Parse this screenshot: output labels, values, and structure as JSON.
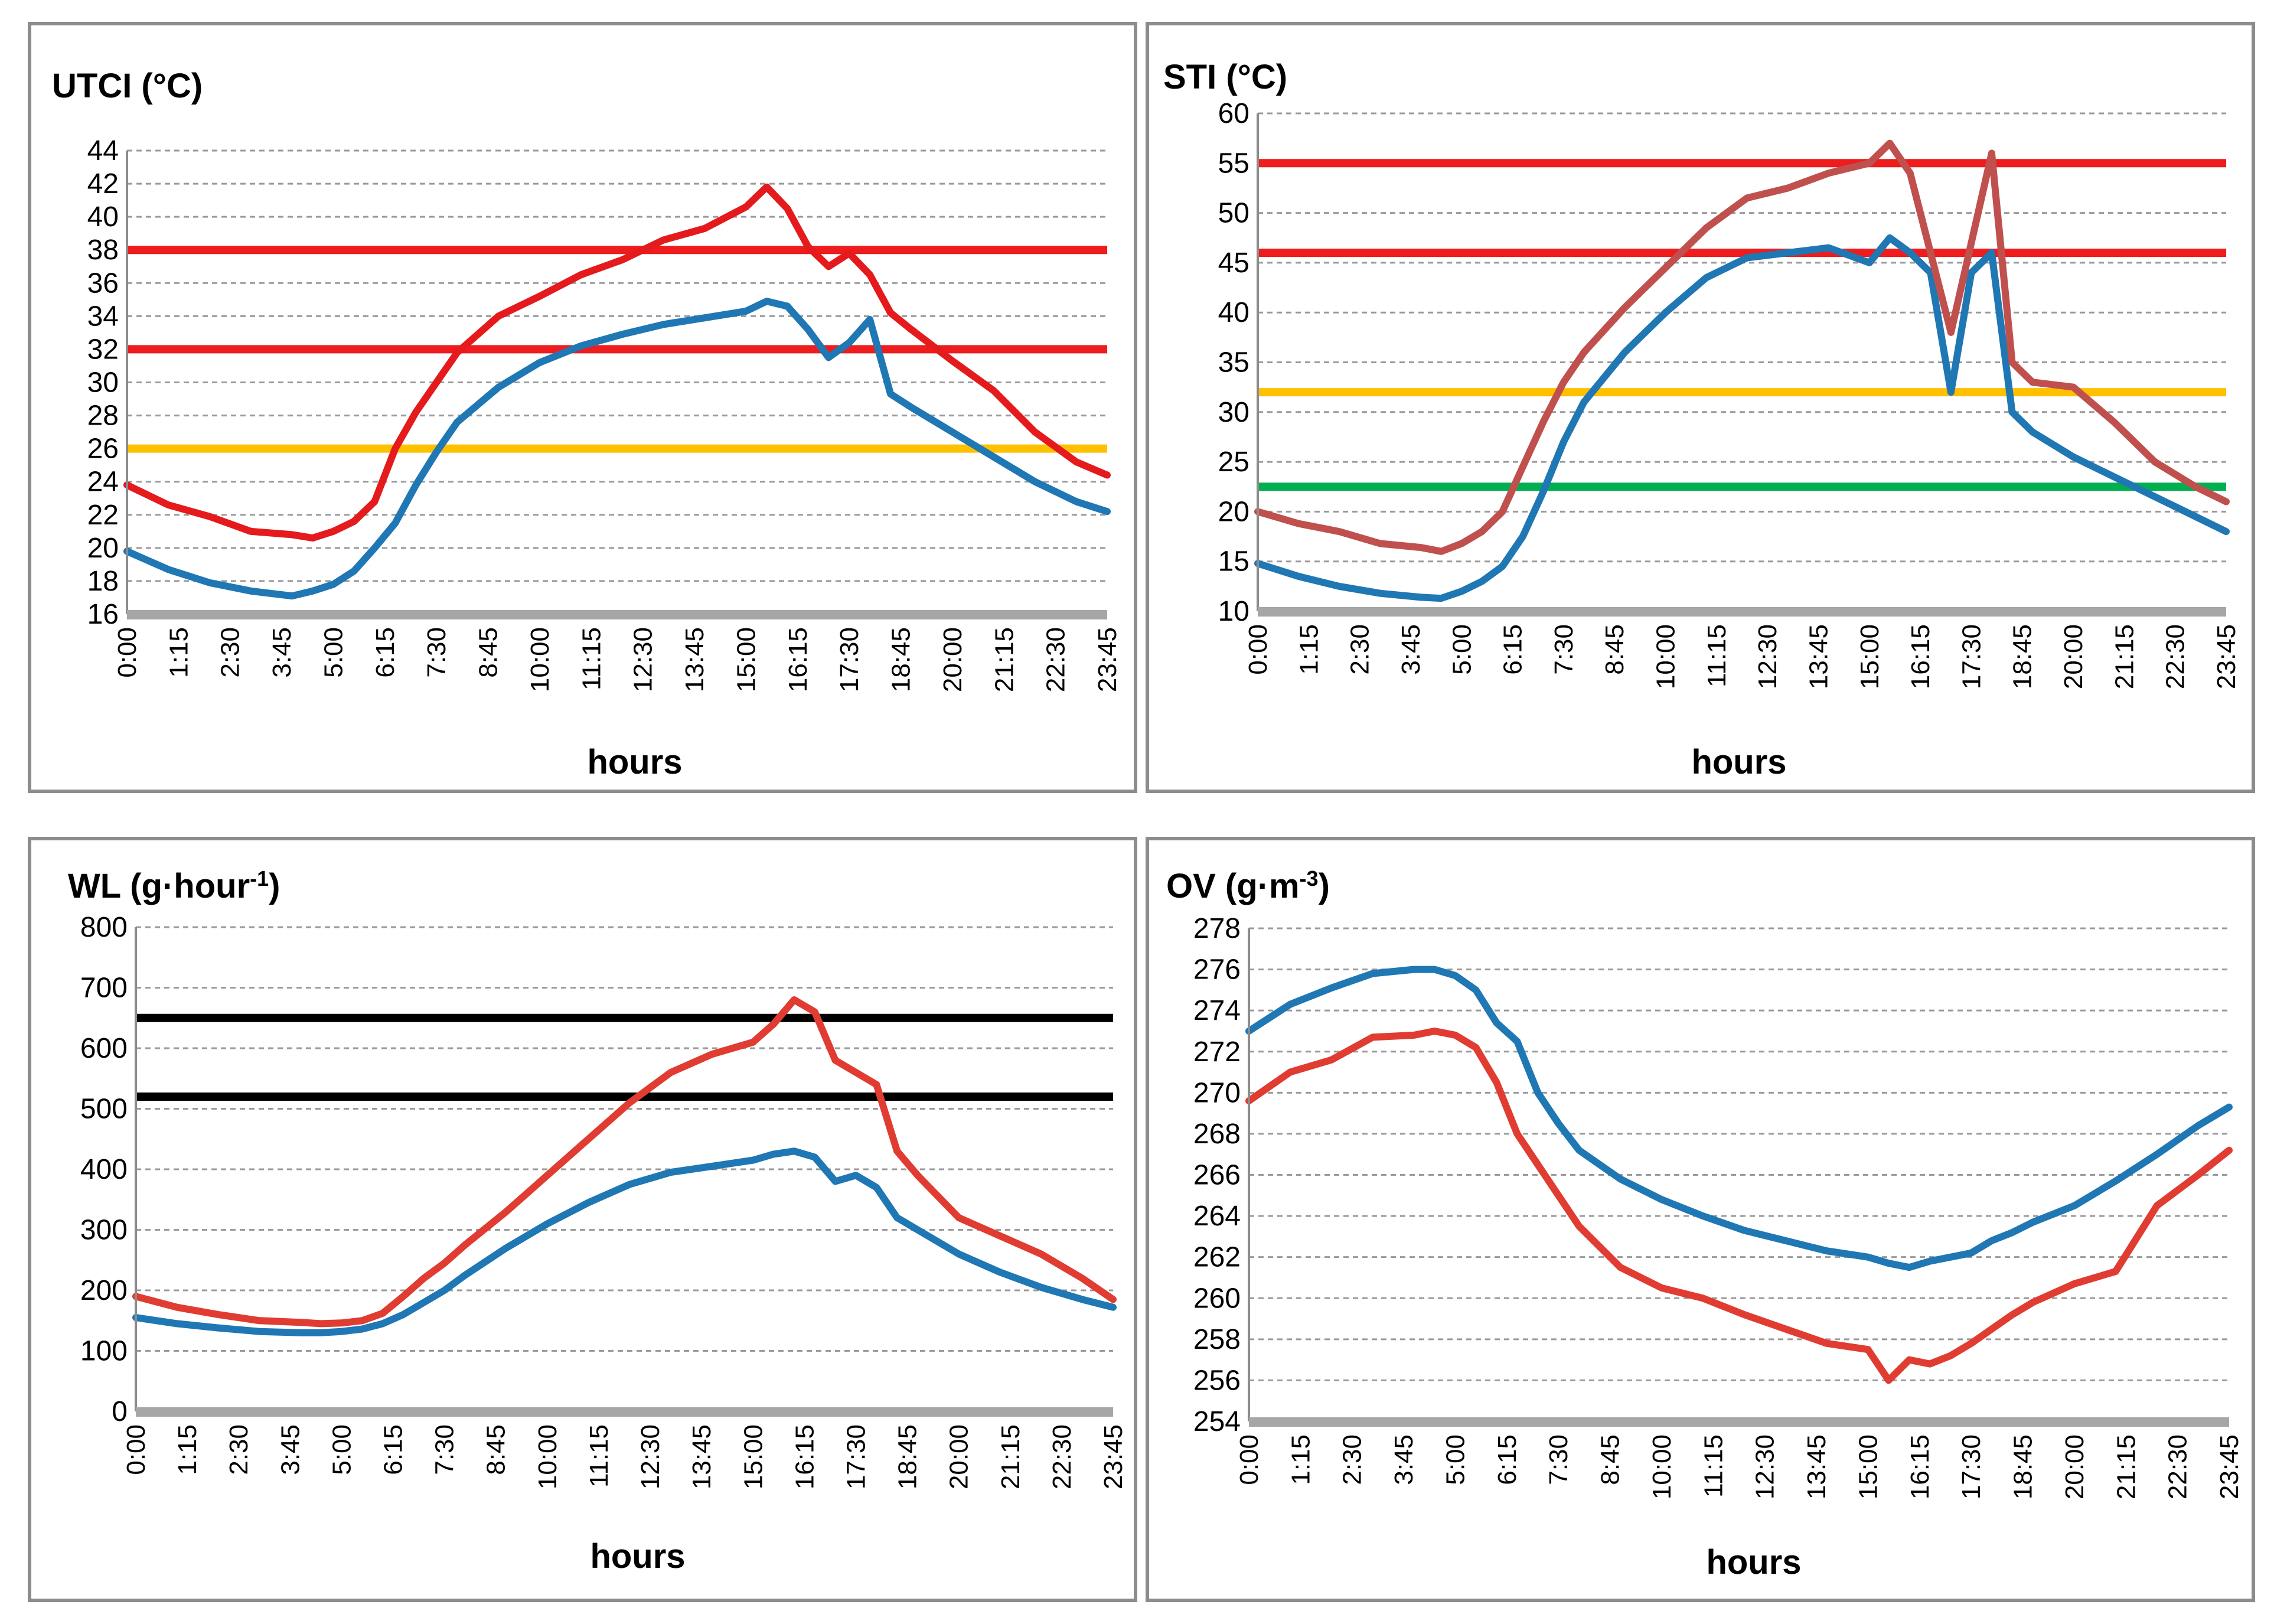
{
  "chart_data": [
    {
      "id": "utci",
      "type": "line",
      "title": "UTCI (°C)",
      "xlabel": "hours",
      "ylim": [
        16,
        44
      ],
      "yticks": [
        16,
        18,
        20,
        22,
        24,
        26,
        28,
        30,
        32,
        34,
        36,
        38,
        40,
        42,
        44
      ],
      "x_ticks": [
        "0:00",
        "1:15",
        "2:30",
        "3:45",
        "5:00",
        "6:15",
        "7:30",
        "8:45",
        "10:00",
        "11:15",
        "12:30",
        "13:45",
        "15:00",
        "16:15",
        "17:30",
        "18:45",
        "20:00",
        "21:15",
        "22:30",
        "23:45"
      ],
      "x_hours": [
        0,
        1,
        2,
        3,
        4,
        4.5,
        5,
        5.5,
        6,
        6.5,
        7,
        7.5,
        8,
        9,
        10,
        11,
        12,
        13,
        14,
        15,
        15.5,
        16,
        16.5,
        17,
        17.5,
        18,
        18.5,
        19,
        20,
        21,
        22,
        23,
        23.75
      ],
      "series": [
        {
          "name": "series-blue",
          "color": "#1f77b4",
          "values": [
            19.8,
            18.7,
            17.9,
            17.4,
            17.1,
            17.4,
            17.8,
            18.6,
            20.0,
            21.5,
            23.8,
            25.8,
            27.6,
            29.7,
            31.2,
            32.2,
            32.9,
            33.5,
            33.9,
            34.3,
            34.9,
            34.6,
            33.2,
            31.5,
            32.4,
            33.8,
            29.3,
            28.5,
            27.0,
            25.5,
            24.0,
            22.8,
            22.2
          ]
        },
        {
          "name": "series-red",
          "color": "#e41a1c",
          "values": [
            23.8,
            22.6,
            21.9,
            21.0,
            20.8,
            20.6,
            21.0,
            21.6,
            22.8,
            26.0,
            28.2,
            30.0,
            31.8,
            34.0,
            35.2,
            36.5,
            37.4,
            38.6,
            39.3,
            40.6,
            41.8,
            40.5,
            38.2,
            37.0,
            37.8,
            36.5,
            34.2,
            33.2,
            31.3,
            29.5,
            27.0,
            25.2,
            24.4
          ]
        }
      ],
      "hlines": [
        {
          "value": 38,
          "color": "#ee1c1c"
        },
        {
          "value": 32,
          "color": "#ee1c1c"
        },
        {
          "value": 26,
          "color": "#ffc000"
        }
      ]
    },
    {
      "id": "sti",
      "type": "line",
      "title": "STI (°C)",
      "xlabel": "hours",
      "ylim": [
        10,
        60
      ],
      "yticks": [
        10,
        15,
        20,
        25,
        30,
        35,
        40,
        45,
        50,
        55,
        60
      ],
      "x_ticks": [
        "0:00",
        "1:15",
        "2:30",
        "3:45",
        "5:00",
        "6:15",
        "7:30",
        "8:45",
        "10:00",
        "11:15",
        "12:30",
        "13:45",
        "15:00",
        "16:15",
        "17:30",
        "18:45",
        "20:00",
        "21:15",
        "22:30",
        "23:45"
      ],
      "x_hours": [
        0,
        1,
        2,
        3,
        4,
        4.5,
        5,
        5.5,
        6,
        6.5,
        7,
        7.5,
        8,
        9,
        10,
        11,
        12,
        13,
        14,
        15,
        15.5,
        16,
        16.5,
        17,
        17.5,
        18,
        18.5,
        19,
        20,
        21,
        22,
        23,
        23.75
      ],
      "series": [
        {
          "name": "series-blue",
          "color": "#1f77b4",
          "values": [
            14.8,
            13.5,
            12.5,
            11.8,
            11.4,
            11.3,
            12.0,
            13.0,
            14.5,
            17.5,
            22.0,
            27.0,
            31.0,
            36.0,
            40.0,
            43.5,
            45.5,
            46.0,
            46.5,
            45.0,
            47.5,
            46.0,
            44.0,
            32.0,
            44.0,
            46.0,
            30.0,
            28.0,
            25.5,
            23.5,
            21.5,
            19.5,
            18.0
          ]
        },
        {
          "name": "series-red",
          "color": "#c0504d",
          "values": [
            20.0,
            18.8,
            18.0,
            16.8,
            16.4,
            16.0,
            16.8,
            18.0,
            20.0,
            24.5,
            29.0,
            33.0,
            36.0,
            40.5,
            44.5,
            48.5,
            51.5,
            52.5,
            54.0,
            55.0,
            57.0,
            54.0,
            46.0,
            38.0,
            47.0,
            56.0,
            35.0,
            33.0,
            32.5,
            29.0,
            25.0,
            22.5,
            21.0
          ]
        }
      ],
      "hlines": [
        {
          "value": 55,
          "color": "#ee1c1c"
        },
        {
          "value": 46,
          "color": "#ee1c1c"
        },
        {
          "value": 32,
          "color": "#ffc000"
        },
        {
          "value": 22.5,
          "color": "#00b050"
        }
      ]
    },
    {
      "id": "wl",
      "type": "line",
      "title": "WL (g·hour",
      "title_sup": "-1",
      "title_tail": ")",
      "xlabel": "hours",
      "ylim": [
        0,
        800
      ],
      "yticks": [
        0,
        100,
        200,
        300,
        400,
        500,
        600,
        700,
        800
      ],
      "x_ticks": [
        "0:00",
        "1:15",
        "2:30",
        "3:45",
        "5:00",
        "6:15",
        "7:30",
        "8:45",
        "10:00",
        "11:15",
        "12:30",
        "13:45",
        "15:00",
        "16:15",
        "17:30",
        "18:45",
        "20:00",
        "21:15",
        "22:30",
        "23:45"
      ],
      "x_hours": [
        0,
        1,
        2,
        3,
        4,
        4.5,
        5,
        5.5,
        6,
        6.5,
        7,
        7.5,
        8,
        9,
        10,
        11,
        12,
        13,
        14,
        15,
        15.5,
        16,
        16.5,
        17,
        17.5,
        18,
        18.5,
        19,
        20,
        21,
        22,
        23,
        23.75
      ],
      "series": [
        {
          "name": "series-blue",
          "color": "#1f77b4",
          "values": [
            155,
            145,
            138,
            132,
            130,
            130,
            132,
            136,
            145,
            160,
            180,
            200,
            225,
            270,
            310,
            345,
            375,
            395,
            405,
            415,
            425,
            430,
            420,
            380,
            390,
            370,
            320,
            300,
            260,
            230,
            205,
            185,
            172
          ]
        },
        {
          "name": "series-red",
          "color": "#e03c31",
          "values": [
            190,
            172,
            160,
            150,
            147,
            145,
            146,
            150,
            162,
            190,
            220,
            245,
            275,
            330,
            390,
            450,
            510,
            560,
            590,
            610,
            640,
            680,
            660,
            580,
            560,
            540,
            430,
            390,
            320,
            290,
            260,
            220,
            185
          ]
        }
      ],
      "hlines": [
        {
          "value": 650,
          "color": "#000000"
        },
        {
          "value": 520,
          "color": "#000000"
        }
      ]
    },
    {
      "id": "ov",
      "type": "line",
      "title": "OV (g·m",
      "title_sup": "-3",
      "title_tail": ")",
      "xlabel": "hours",
      "ylim": [
        254,
        278
      ],
      "yticks": [
        254,
        256,
        258,
        260,
        262,
        264,
        266,
        268,
        270,
        272,
        274,
        276,
        278
      ],
      "x_ticks": [
        "0:00",
        "1:15",
        "2:30",
        "3:45",
        "5:00",
        "6:15",
        "7:30",
        "8:45",
        "10:00",
        "11:15",
        "12:30",
        "13:45",
        "15:00",
        "16:15",
        "17:30",
        "18:45",
        "20:00",
        "21:15",
        "22:30",
        "23:45"
      ],
      "x_hours": [
        0,
        1,
        2,
        3,
        4,
        4.5,
        5,
        5.5,
        6,
        6.5,
        7,
        7.5,
        8,
        9,
        10,
        11,
        12,
        13,
        14,
        15,
        15.5,
        16,
        16.5,
        17,
        17.5,
        18,
        18.5,
        19,
        20,
        21,
        22,
        23,
        23.75
      ],
      "series": [
        {
          "name": "series-blue",
          "color": "#1f77b4",
          "values": [
            273.0,
            274.3,
            275.1,
            275.8,
            276.0,
            276.0,
            275.7,
            275.0,
            273.4,
            272.5,
            270.0,
            268.5,
            267.2,
            265.8,
            264.8,
            264.0,
            263.3,
            262.8,
            262.3,
            262.0,
            261.7,
            261.5,
            261.8,
            262.0,
            262.2,
            262.8,
            263.2,
            263.7,
            264.5,
            265.7,
            267.0,
            268.4,
            269.3
          ]
        },
        {
          "name": "series-red",
          "color": "#e03c31",
          "values": [
            269.6,
            271.0,
            271.6,
            272.7,
            272.8,
            273.0,
            272.8,
            272.2,
            270.5,
            268.0,
            266.5,
            265.0,
            263.5,
            261.5,
            260.5,
            260.0,
            259.2,
            258.5,
            257.8,
            257.5,
            256.0,
            257.0,
            256.8,
            257.2,
            257.8,
            258.5,
            259.2,
            259.8,
            260.7,
            261.3,
            264.5,
            266.0,
            267.2
          ]
        }
      ],
      "hlines": []
    }
  ]
}
